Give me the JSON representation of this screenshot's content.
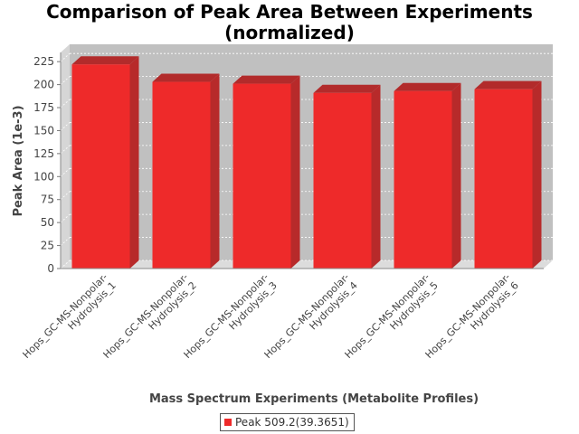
{
  "chart_data": {
    "type": "bar",
    "title_line1": "Comparison of Peak Area Between Experiments",
    "title_line2": "(normalized)",
    "xlabel": "Mass Spectrum Experiments (Metabolite Profiles)",
    "ylabel": "Peak Area (1e-3)",
    "ylim": [
      0,
      235
    ],
    "yticks": [
      0,
      25,
      50,
      75,
      100,
      125,
      150,
      175,
      200,
      225
    ],
    "categories": [
      [
        "Hops_GC-MS-Nonpolar-",
        "Hydrolysis_1"
      ],
      [
        "Hops_GC-MS-Nonpolar-",
        "Hydrolysis_2"
      ],
      [
        "Hops_GC-MS-Nonpolar-",
        "Hydrolysis_3"
      ],
      [
        "Hops_GC-MS-Nonpolar-",
        "Hydrolysis_4"
      ],
      [
        "Hops_GC-MS-Nonpolar-",
        "Hydrolysis_5"
      ],
      [
        "Hops_GC-MS-Nonpolar-",
        "Hydrolysis_6"
      ]
    ],
    "series": [
      {
        "name": "Peak 509.2(39.3651)",
        "color": "#ee2a2a",
        "values": [
          222,
          203,
          201,
          191,
          193,
          195
        ]
      }
    ],
    "grid": true,
    "legend_position": "bottom",
    "colors": {
      "plot_background": "#c0c0c0",
      "wall_side": "#d6d6d6",
      "floor": "#dcdcdc",
      "bar_front": "#ee2a2a",
      "bar_top": "#b22b2b",
      "bar_side": "#b72a2a"
    }
  }
}
